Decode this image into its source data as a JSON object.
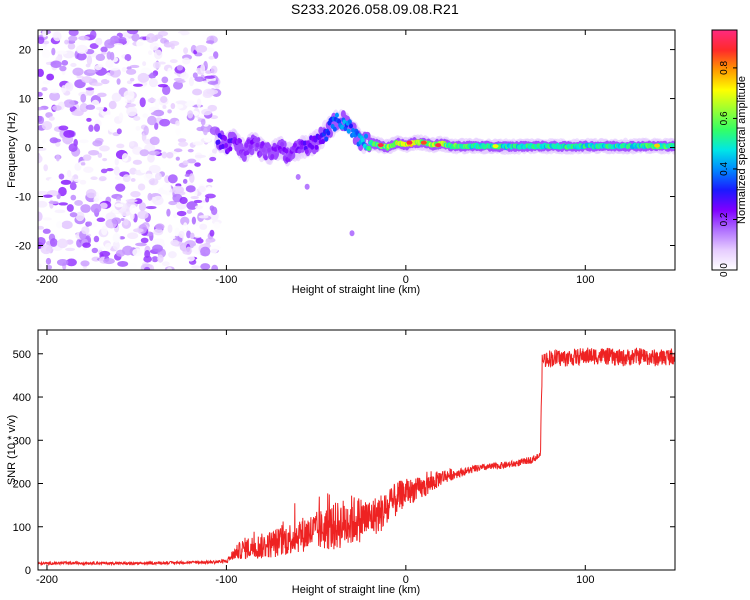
{
  "title": "S233.2026.058.09.08.R21",
  "colors": {
    "snr_line": "#ee2222",
    "background": "#ffffff",
    "axis": "#000000"
  },
  "colorbar": {
    "label": "Normalized spectral amplitude",
    "range": [
      0.0,
      0.95
    ],
    "ticks": [
      0.0,
      0.2,
      0.4,
      0.6,
      0.8
    ],
    "tick_labels": [
      "0.0",
      "0.2",
      "0.4",
      "0.6",
      "0.8"
    ],
    "palette": [
      "#ffffff",
      "#e6ccff",
      "#b070ff",
      "#7f00ff",
      "#1a1aff",
      "#0088ff",
      "#00e6e6",
      "#33ff66",
      "#99ff33",
      "#ffff00",
      "#ff9900",
      "#ff2a2a",
      "#ff2a80"
    ]
  },
  "chart_data": [
    {
      "type": "heatmap",
      "xlabel": "Height of straight line (km)",
      "ylabel": "Frequency (Hz)",
      "xlim": [
        -205,
        150
      ],
      "ylim": [
        -25,
        24
      ],
      "xticks": [
        -200,
        -100,
        0,
        100
      ],
      "xtick_labels": [
        "-200",
        "-100",
        "0",
        "100"
      ],
      "yticks": [
        -20,
        -10,
        0,
        10,
        20
      ],
      "ytick_labels": [
        "-20",
        "-10",
        "0",
        "10",
        "20"
      ],
      "noise_region": {
        "x": [
          -205,
          -105
        ],
        "y": [
          -25,
          24
        ]
      },
      "signal_track": {
        "x": [
          -105,
          -100,
          -95,
          -90,
          -85,
          -80,
          -75,
          -70,
          -65,
          -60,
          -55,
          -50,
          -45,
          -40,
          -35,
          -30,
          -25,
          -20,
          -15,
          -10,
          -5,
          0,
          5,
          10,
          15,
          20,
          25,
          30,
          40,
          50,
          60,
          70,
          80,
          90,
          100,
          110,
          120,
          130,
          140,
          150
        ],
        "y": [
          2,
          0.5,
          1.5,
          -1,
          1,
          -0.5,
          -1,
          0,
          -1.5,
          -0.5,
          0.5,
          1,
          3,
          5,
          5.5,
          3.5,
          1.5,
          1,
          0.5,
          0,
          1,
          0.5,
          1,
          1,
          0.5,
          0.8,
          0.3,
          0.3,
          0.3,
          0.2,
          0.2,
          0.3,
          0.3,
          0.2,
          0.3,
          0.3,
          0.3,
          0.3,
          0.3,
          0.3
        ],
        "amplitude": [
          0.25,
          0.25,
          0.25,
          0.2,
          0.22,
          0.2,
          0.2,
          0.22,
          0.2,
          0.22,
          0.25,
          0.25,
          0.3,
          0.35,
          0.4,
          0.35,
          0.4,
          0.5,
          0.55,
          0.6,
          0.65,
          0.7,
          0.7,
          0.6,
          0.65,
          0.6,
          0.55,
          0.55,
          0.5,
          0.5,
          0.5,
          0.5,
          0.5,
          0.5,
          0.5,
          0.5,
          0.5,
          0.5,
          0.55,
          0.5
        ]
      },
      "hot_spots": [
        {
          "x": -14,
          "y": 0.5,
          "amplitude": 0.9
        },
        {
          "x": 2,
          "y": 1,
          "amplitude": 0.9
        },
        {
          "x": 10,
          "y": 1,
          "amplitude": 0.85
        },
        {
          "x": 18,
          "y": 0.5,
          "amplitude": 0.9
        },
        {
          "x": 50,
          "y": 0.3,
          "amplitude": 0.7
        },
        {
          "x": 140,
          "y": 0.4,
          "amplitude": 0.75
        }
      ]
    },
    {
      "type": "line",
      "xlabel": "Height of straight line (km)",
      "ylabel": "SNR (10 * v/v)",
      "xlim": [
        -205,
        150
      ],
      "ylim": [
        0,
        555
      ],
      "xticks": [
        -200,
        -100,
        0,
        100
      ],
      "xtick_labels": [
        "-200",
        "-100",
        "0",
        "100"
      ],
      "yticks": [
        0,
        100,
        200,
        300,
        400,
        500
      ],
      "ytick_labels": [
        "0",
        "100",
        "200",
        "300",
        "400",
        "500"
      ],
      "series": [
        {
          "x": [
            -205,
            -190,
            -170,
            -150,
            -130,
            -110,
            -100,
            -95,
            -90,
            -80,
            -70,
            -60,
            -50,
            -40,
            -30,
            -20,
            -10,
            -5,
            0,
            10,
            20,
            30,
            40,
            50,
            60,
            70,
            75,
            76,
            80,
            90,
            100,
            110,
            120,
            130,
            140,
            150
          ],
          "y": [
            15,
            16,
            16,
            15,
            17,
            18,
            20,
            40,
            50,
            55,
            65,
            80,
            90,
            100,
            115,
            120,
            140,
            165,
            180,
            190,
            215,
            225,
            235,
            240,
            245,
            255,
            265,
            485,
            490,
            490,
            495,
            495,
            490,
            495,
            490,
            495
          ],
          "noise_amplitude": [
            3,
            3,
            3,
            3,
            3,
            3,
            5,
            15,
            25,
            30,
            35,
            40,
            45,
            55,
            60,
            45,
            45,
            40,
            30,
            25,
            18,
            10,
            8,
            8,
            8,
            8,
            8,
            20,
            20,
            20,
            20,
            20,
            20,
            20,
            20,
            20
          ]
        }
      ]
    }
  ]
}
